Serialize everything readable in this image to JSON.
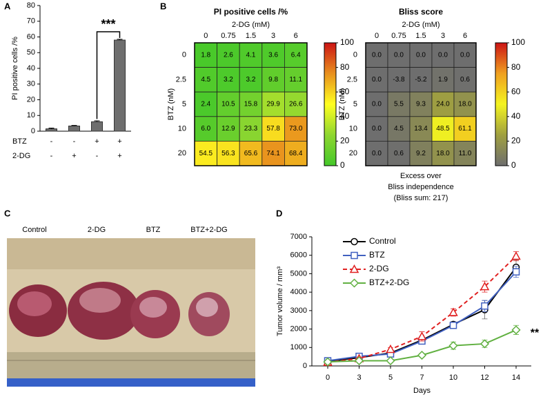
{
  "chart_data": [
    {
      "type": "bar",
      "panel_label": "A",
      "ylabel": "PI positive cells /%",
      "values": [
        1.5,
        3.3,
        6,
        58
      ],
      "errors": [
        0.5,
        0.4,
        0.6,
        0.5
      ],
      "color": "#6e6e6e",
      "ylim": [
        0,
        80
      ],
      "yticks": [
        0,
        10,
        20,
        30,
        40,
        50,
        60,
        70,
        80
      ],
      "rows": [
        {
          "name": "BTZ",
          "labels": [
            "-",
            "-",
            "+",
            "+"
          ]
        },
        {
          "name": "2-DG",
          "labels": [
            "-",
            "+",
            "-",
            "+"
          ]
        }
      ],
      "annotation": "***"
    },
    {
      "type": "heatmap",
      "panel_label": "B",
      "title": "PI positive cells /%",
      "xlabel": "2-DG (mM)",
      "ylabel": "BTZ (nM)",
      "categories": [
        "0",
        "0.75",
        "1.5",
        "3",
        "6"
      ],
      "y_categories": [
        "0",
        "2.5",
        "5",
        "10",
        "20"
      ],
      "values": [
        [
          1.8,
          2.6,
          4.1,
          3.6,
          6.4
        ],
        [
          4.5,
          3.2,
          3.2,
          9.8,
          11.1
        ],
        [
          2.4,
          10.5,
          15.8,
          29.9,
          26.6
        ],
        [
          6.0,
          12.9,
          23.3,
          57.8,
          73.0
        ],
        [
          54.5,
          56.3,
          65.6,
          74.1,
          68.4
        ]
      ],
      "value_labels": [
        [
          "1.8",
          "2.6",
          "4.1",
          "3.6",
          "6.4"
        ],
        [
          "4.5",
          "3.2",
          "3.2",
          "9.8",
          "11.1"
        ],
        [
          "2.4",
          "10.5",
          "15.8",
          "29.9",
          "26.6"
        ],
        [
          "6.0",
          "12.9",
          "23.3",
          "57.8",
          "73.0"
        ],
        [
          "54.5",
          "56.3",
          "65.6",
          "74.1",
          "68.4"
        ]
      ],
      "clim": [
        0,
        100
      ],
      "cticks": [
        0,
        20,
        40,
        60,
        80,
        100
      ],
      "colormap": [
        "#44c82a",
        "#8ed630",
        "#ffff20",
        "#e8901e",
        "#cc1414"
      ]
    },
    {
      "type": "heatmap",
      "title": "Bliss score",
      "xlabel": "2-DG (mM)",
      "ylabel": "BTZ (nM)",
      "categories": [
        "0",
        "0.75",
        "1.5",
        "3",
        "6"
      ],
      "y_categories": [
        "0",
        "2.5",
        "5",
        "10",
        "20"
      ],
      "values": [
        [
          0,
          0,
          0,
          0,
          0
        ],
        [
          0,
          -3.8,
          -5.2,
          1.9,
          0.6
        ],
        [
          0,
          5.5,
          9.3,
          24.0,
          18.0
        ],
        [
          0,
          4.5,
          13.4,
          48.5,
          61.1
        ],
        [
          0,
          0.6,
          9.2,
          18.0,
          11.0
        ]
      ],
      "value_labels": [
        [
          "0.0",
          "0.0",
          "0.0",
          "0.0",
          "0.0"
        ],
        [
          "0.0",
          "-3.8",
          "-5.2",
          "1.9",
          "0.6"
        ],
        [
          "0.0",
          "5.5",
          "9.3",
          "24.0",
          "18.0"
        ],
        [
          "0.0",
          "4.5",
          "13.4",
          "48.5",
          "61.1"
        ],
        [
          "0.0",
          "0.6",
          "9.2",
          "18.0",
          "11.0"
        ]
      ],
      "clim": [
        0,
        100
      ],
      "cticks": [
        0,
        20,
        40,
        60,
        80,
        100
      ],
      "colormap": [
        "#6e6e6e",
        "#a0a040",
        "#f4f420",
        "#f0a020",
        "#cc1414"
      ],
      "footer": [
        "Excess over",
        "Bliss independence",
        "(Bliss sum: 217)"
      ]
    },
    {
      "type": "line",
      "panel_label": "D",
      "xlabel": "Days",
      "ylabel": "Tumor volume / mm³",
      "categories": [
        "0",
        "3",
        "5",
        "7",
        "10",
        "12",
        "14"
      ],
      "series": [
        {
          "name": "Control",
          "color": "#000000",
          "marker": "circle",
          "dashed": false,
          "values": [
            250,
            450,
            700,
            1400,
            2250,
            3050,
            5350
          ],
          "errors": [
            50,
            80,
            100,
            200,
            150,
            500,
            400
          ]
        },
        {
          "name": "BTZ",
          "color": "#4060c0",
          "marker": "square",
          "dashed": false,
          "values": [
            280,
            520,
            650,
            1350,
            2200,
            3250,
            5100
          ],
          "errors": [
            50,
            80,
            100,
            150,
            150,
            300,
            300
          ]
        },
        {
          "name": "2-DG",
          "color": "#e02020",
          "marker": "triangle",
          "dashed": true,
          "values": [
            200,
            400,
            900,
            1600,
            2900,
            4300,
            5950
          ],
          "errors": [
            50,
            80,
            100,
            250,
            200,
            300,
            250
          ]
        },
        {
          "name": "BTZ+2-DG",
          "color": "#60b040",
          "marker": "diamond",
          "dashed": false,
          "values": [
            220,
            280,
            280,
            580,
            1100,
            1200,
            1950
          ],
          "errors": [
            30,
            50,
            50,
            100,
            200,
            200,
            250
          ]
        }
      ],
      "ylim": [
        0,
        7000
      ],
      "yticks": [
        0,
        1000,
        2000,
        3000,
        4000,
        5000,
        6000,
        7000
      ],
      "annotation": "**"
    }
  ],
  "photo": {
    "panel_label": "C",
    "labels": [
      "Control",
      "2-DG",
      "BTZ",
      "BTZ+2-DG"
    ]
  }
}
